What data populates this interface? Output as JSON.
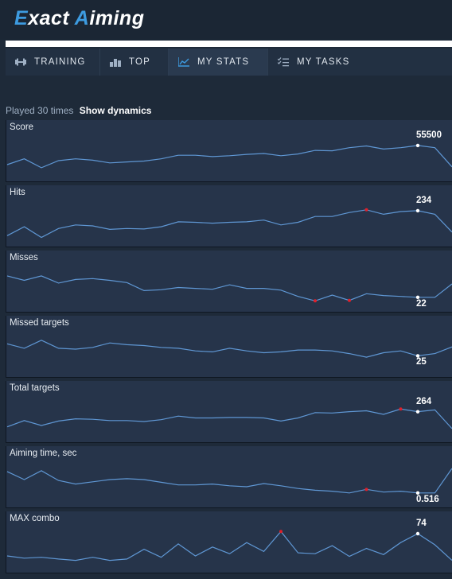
{
  "app": {
    "title_first": "E",
    "title_mid": "xact ",
    "title_accent": "A",
    "title_last": "iming"
  },
  "nav": {
    "tabs": [
      {
        "label": "TRAINING",
        "icon": "dumbbell-icon",
        "active": false
      },
      {
        "label": "TOP",
        "icon": "podium-icon",
        "active": false
      },
      {
        "label": "MY STATS",
        "icon": "line-chart-icon",
        "active": true
      },
      {
        "label": "MY TASKS",
        "icon": "checklist-icon",
        "active": false
      }
    ]
  },
  "summary": {
    "played_text": "Played 30 times",
    "dynamics_link": "Show dynamics"
  },
  "colors": {
    "line": "#5f97d4",
    "highlight": "#e0202a",
    "current": "#ffffff"
  },
  "chart_data": [
    {
      "type": "line",
      "title": "Score",
      "current_label": "55500",
      "values": [
        0.25,
        0.38,
        0.18,
        0.34,
        0.38,
        0.35,
        0.29,
        0.31,
        0.33,
        0.38,
        0.46,
        0.46,
        0.43,
        0.45,
        0.48,
        0.5,
        0.45,
        0.49,
        0.57,
        0.56,
        0.63,
        0.67,
        0.6,
        0.63,
        0.68,
        0.63,
        0.2
      ],
      "current_index": 24,
      "highlight_indices": []
    },
    {
      "type": "line",
      "title": "Hits",
      "current_label": "234",
      "values": [
        0.12,
        0.32,
        0.08,
        0.28,
        0.36,
        0.34,
        0.26,
        0.28,
        0.27,
        0.32,
        0.43,
        0.42,
        0.4,
        0.42,
        0.43,
        0.47,
        0.36,
        0.42,
        0.55,
        0.55,
        0.64,
        0.7,
        0.6,
        0.66,
        0.68,
        0.6,
        0.2
      ],
      "current_index": 24,
      "highlight_indices": [
        21
      ]
    },
    {
      "type": "line",
      "title": "Misses",
      "current_label": "22",
      "values": [
        0.68,
        0.58,
        0.68,
        0.52,
        0.6,
        0.62,
        0.58,
        0.53,
        0.35,
        0.37,
        0.42,
        0.4,
        0.38,
        0.48,
        0.4,
        0.4,
        0.36,
        0.22,
        0.12,
        0.25,
        0.13,
        0.28,
        0.24,
        0.22,
        0.2,
        0.2,
        0.5
      ],
      "current_index": 24,
      "highlight_indices": [
        18,
        20
      ]
    },
    {
      "type": "line",
      "title": "Missed targets",
      "current_label": "25",
      "values": [
        0.62,
        0.52,
        0.7,
        0.52,
        0.5,
        0.54,
        0.64,
        0.6,
        0.58,
        0.54,
        0.52,
        0.46,
        0.44,
        0.52,
        0.46,
        0.42,
        0.44,
        0.48,
        0.48,
        0.46,
        0.4,
        0.32,
        0.42,
        0.46,
        0.35,
        0.4,
        0.55
      ],
      "current_index": 24,
      "highlight_indices": []
    },
    {
      "type": "line",
      "title": "Total targets",
      "current_label": "264",
      "values": [
        0.22,
        0.36,
        0.25,
        0.35,
        0.4,
        0.39,
        0.36,
        0.36,
        0.34,
        0.38,
        0.46,
        0.42,
        0.42,
        0.43,
        0.43,
        0.42,
        0.35,
        0.42,
        0.54,
        0.53,
        0.56,
        0.58,
        0.5,
        0.62,
        0.56,
        0.6,
        0.18
      ],
      "current_index": 24,
      "highlight_indices": [
        23
      ]
    },
    {
      "type": "line",
      "title": "Aiming time, sec",
      "current_label": "0.516",
      "values": [
        0.68,
        0.5,
        0.7,
        0.48,
        0.4,
        0.45,
        0.5,
        0.52,
        0.5,
        0.44,
        0.38,
        0.38,
        0.4,
        0.36,
        0.34,
        0.41,
        0.36,
        0.3,
        0.26,
        0.24,
        0.2,
        0.28,
        0.22,
        0.24,
        0.2,
        0.2,
        0.75
      ],
      "current_index": 24,
      "highlight_indices": [
        21
      ]
    },
    {
      "type": "line",
      "title": "MAX combo",
      "current_label": "74",
      "values": [
        0.25,
        0.2,
        0.22,
        0.18,
        0.15,
        0.22,
        0.15,
        0.18,
        0.4,
        0.22,
        0.52,
        0.25,
        0.45,
        0.3,
        0.55,
        0.35,
        0.8,
        0.32,
        0.3,
        0.48,
        0.24,
        0.42,
        0.28,
        0.55,
        0.75,
        0.5,
        0.15
      ],
      "current_index": 24,
      "highlight_indices": [
        16
      ]
    }
  ]
}
